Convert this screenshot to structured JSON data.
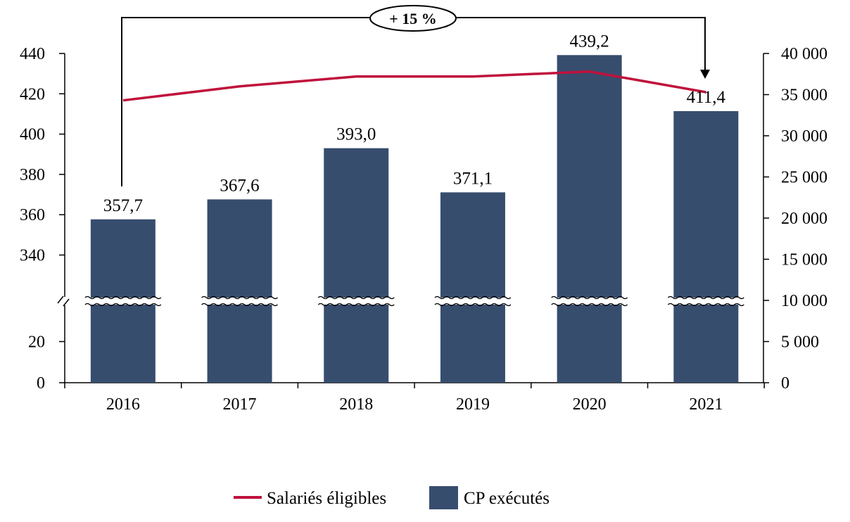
{
  "chart_data": {
    "type": "bar",
    "categories": [
      "2016",
      "2017",
      "2018",
      "2019",
      "2020",
      "2021"
    ],
    "series": [
      {
        "name": "CP exécutés",
        "type": "bar",
        "axis": "left",
        "values": [
          357.7,
          367.6,
          393.0,
          371.1,
          439.2,
          411.4
        ],
        "labels": [
          "357,7",
          "367,6",
          "393,0",
          "371,1",
          "439,2",
          "411,4"
        ],
        "color": "#374d6e"
      },
      {
        "name": "Salariés éligibles",
        "type": "line",
        "axis": "right",
        "values": [
          34300,
          36000,
          37200,
          37200,
          37800,
          35300
        ],
        "color": "#c0123c"
      }
    ],
    "left_axis": {
      "ticks": [
        0,
        20,
        340,
        360,
        380,
        400,
        420,
        440
      ],
      "tick_labels": [
        "0",
        "20",
        "340",
        "360",
        "380",
        "400",
        "420",
        "440"
      ],
      "broken": true,
      "lower_range": [
        0,
        30
      ],
      "upper_range": [
        330,
        440
      ]
    },
    "right_axis": {
      "ticks": [
        0,
        5000,
        10000,
        15000,
        20000,
        25000,
        30000,
        35000,
        40000
      ],
      "tick_labels": [
        "0",
        "5 000",
        "10 000",
        "15 000",
        "20 000",
        "25 000",
        "30 000",
        "35 000",
        "40 000"
      ],
      "ylim": [
        0,
        40000
      ]
    },
    "annotation": {
      "text": "+ 15 %",
      "from": "2016",
      "to": "2021"
    },
    "legend": {
      "placement": "bottom",
      "items": [
        {
          "label": "Salariés éligibles",
          "kind": "line",
          "color": "#c0123c"
        },
        {
          "label": "CP exécutés",
          "kind": "bar",
          "color": "#374d6e"
        }
      ]
    },
    "grid": false
  }
}
